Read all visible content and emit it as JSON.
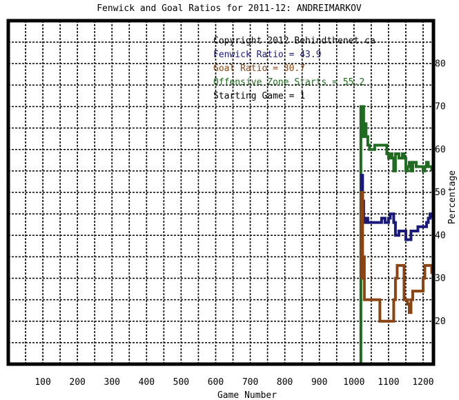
{
  "chart_data": {
    "type": "line",
    "title": "Fenwick and Goal Ratios for 2011-12: ANDREIMARKOV",
    "xlabel": "Game Number",
    "ylabel": "Percentage",
    "xlim": [
      0,
      1230
    ],
    "ylim": [
      10,
      90
    ],
    "x_ticks": [
      100,
      200,
      300,
      400,
      500,
      600,
      700,
      800,
      900,
      1000,
      1100,
      1200
    ],
    "y_ticks": [
      20,
      30,
      40,
      50,
      60,
      70,
      80
    ],
    "grid": true,
    "annotations": [
      {
        "text": "Copyright 2012 Behindthenet.ca",
        "color": "#000000"
      },
      {
        "text": "Fenwick Ratio = 43.9",
        "color": "#1a1a7a"
      },
      {
        "text": "Goal Ratio = 30.7",
        "color": "#8b4513"
      },
      {
        "text": "Offensive Zone Starts = 55.2",
        "color": "#1f6b1f"
      },
      {
        "text": "Starting Game = 1",
        "color": "#000000"
      }
    ],
    "series": [
      {
        "name": "Offensive Zone Starts",
        "color": "#1f6b1f",
        "x": [
          1020,
          1020,
          1022,
          1025,
          1028,
          1030,
          1035,
          1040,
          1045,
          1050,
          1060,
          1070,
          1075,
          1090,
          1095,
          1100,
          1105,
          1110,
          1115,
          1120,
          1125,
          1130,
          1140,
          1145,
          1150,
          1155,
          1160,
          1165,
          1170,
          1180,
          1190,
          1195,
          1200,
          1205,
          1210,
          1215,
          1220,
          1225
        ],
        "values": [
          10,
          70,
          65,
          70,
          63,
          66,
          63,
          61,
          60,
          60,
          61,
          61,
          61,
          61,
          59,
          58,
          59,
          58,
          55,
          59,
          59,
          58,
          59,
          58,
          55,
          56,
          57,
          55,
          57,
          56,
          56,
          56,
          55,
          56,
          57,
          56,
          56,
          55
        ]
      },
      {
        "name": "Fenwick Ratio",
        "color": "#1a1a7a",
        "x": [
          1020,
          1022,
          1025,
          1028,
          1030,
          1035,
          1040,
          1050,
          1060,
          1070,
          1080,
          1085,
          1090,
          1100,
          1105,
          1110,
          1115,
          1120,
          1130,
          1140,
          1145,
          1150,
          1160,
          1165,
          1170,
          1180,
          1185,
          1190,
          1200,
          1210,
          1215,
          1220,
          1225
        ],
        "values": [
          50,
          54,
          48,
          44,
          43,
          44,
          43,
          43,
          43,
          43,
          44,
          44,
          43,
          44,
          45,
          45,
          43,
          40,
          41,
          41,
          41,
          39,
          39,
          41,
          41,
          41,
          42,
          42,
          42,
          43,
          44,
          45,
          44
        ]
      },
      {
        "name": "Goal Ratio",
        "color": "#8b4513",
        "x": [
          1020,
          1022,
          1025,
          1030,
          1040,
          1050,
          1060,
          1070,
          1075,
          1080,
          1085,
          1090,
          1100,
          1105,
          1110,
          1115,
          1120,
          1125,
          1130,
          1140,
          1145,
          1150,
          1155,
          1160,
          1165,
          1170,
          1175,
          1180,
          1185,
          1190,
          1195,
          1200,
          1205,
          1210,
          1215,
          1220,
          1225
        ],
        "values": [
          30,
          50,
          35,
          25,
          25,
          25,
          25,
          25,
          20,
          20,
          20,
          20,
          20,
          20,
          20,
          25,
          30,
          33,
          33,
          33,
          25,
          25,
          24,
          22,
          25,
          27,
          27,
          27,
          27,
          27,
          27,
          30,
          33,
          33,
          33,
          33,
          31
        ]
      }
    ]
  }
}
